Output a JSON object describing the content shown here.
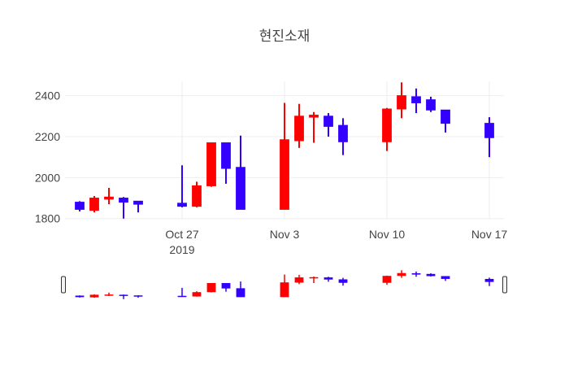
{
  "chart_data": {
    "type": "candlestick",
    "title": "현진소재",
    "xlabel": "",
    "ylabel": "",
    "ylim": [
      1795,
      2470
    ],
    "y_ticks": [
      "1800",
      "2000",
      "2200",
      "2400"
    ],
    "x_ticks": [
      {
        "label": "Oct 27",
        "sublabel": "2019",
        "date": "2019-10-27"
      },
      {
        "label": "Nov 3",
        "sublabel": "",
        "date": "2019-11-03"
      },
      {
        "label": "Nov 10",
        "sublabel": "",
        "date": "2019-11-10"
      },
      {
        "label": "Nov 17",
        "sublabel": "",
        "date": "2019-11-17"
      }
    ],
    "x_range": [
      "2019-10-19",
      "2019-11-18"
    ],
    "grid": true,
    "rangeslider": true,
    "increasing_color": "#ff0000",
    "decreasing_color": "#3300ff",
    "candles": [
      {
        "date": "2019-10-20",
        "open": 1880,
        "high": 1885,
        "low": 1835,
        "close": 1845
      },
      {
        "date": "2019-10-21",
        "open": 1840,
        "high": 1910,
        "low": 1830,
        "close": 1900
      },
      {
        "date": "2019-10-22",
        "open": 1895,
        "high": 1950,
        "low": 1870,
        "close": 1905
      },
      {
        "date": "2019-10-23",
        "open": 1900,
        "high": 1905,
        "low": 1800,
        "close": 1880
      },
      {
        "date": "2019-10-24",
        "open": 1885,
        "high": 1885,
        "low": 1830,
        "close": 1870
      },
      {
        "date": "2019-10-27",
        "open": 1875,
        "high": 2060,
        "low": 1855,
        "close": 1860
      },
      {
        "date": "2019-10-28",
        "open": 1860,
        "high": 1980,
        "low": 1855,
        "close": 1960
      },
      {
        "date": "2019-10-29",
        "open": 1960,
        "high": 2170,
        "low": 1955,
        "close": 2170
      },
      {
        "date": "2019-10-30",
        "open": 2170,
        "high": 2170,
        "low": 1970,
        "close": 2045
      },
      {
        "date": "2019-10-31",
        "open": 2050,
        "high": 2205,
        "low": 1845,
        "close": 1845
      },
      {
        "date": "2019-11-03",
        "open": 1845,
        "high": 2365,
        "low": 1845,
        "close": 2185
      },
      {
        "date": "2019-11-04",
        "open": 2180,
        "high": 2360,
        "low": 2145,
        "close": 2300
      },
      {
        "date": "2019-11-05",
        "open": 2295,
        "high": 2320,
        "low": 2170,
        "close": 2305
      },
      {
        "date": "2019-11-06",
        "open": 2300,
        "high": 2315,
        "low": 2200,
        "close": 2250
      },
      {
        "date": "2019-11-07",
        "open": 2255,
        "high": 2290,
        "low": 2110,
        "close": 2175
      },
      {
        "date": "2019-11-10",
        "open": 2175,
        "high": 2340,
        "low": 2130,
        "close": 2335
      },
      {
        "date": "2019-11-11",
        "open": 2335,
        "high": 2465,
        "low": 2290,
        "close": 2400
      },
      {
        "date": "2019-11-12",
        "open": 2395,
        "high": 2435,
        "low": 2315,
        "close": 2365
      },
      {
        "date": "2019-11-13",
        "open": 2380,
        "high": 2395,
        "low": 2320,
        "close": 2330
      },
      {
        "date": "2019-11-14",
        "open": 2330,
        "high": 2330,
        "low": 2220,
        "close": 2265
      },
      {
        "date": "2019-11-17",
        "open": 2265,
        "high": 2295,
        "low": 2100,
        "close": 2195
      }
    ]
  }
}
